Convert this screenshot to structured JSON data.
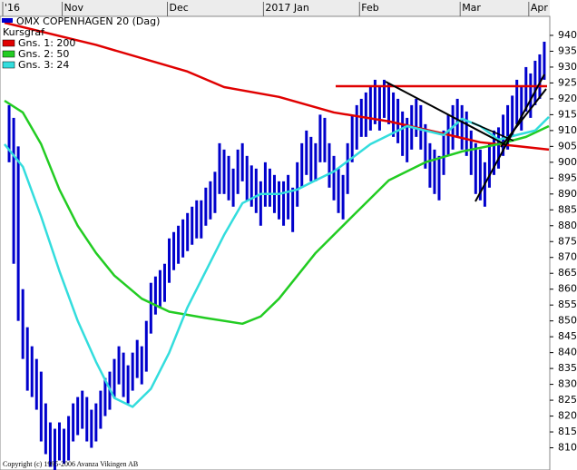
{
  "chart_data": {
    "type": "stock",
    "title": "OMX COPENHAGEN 20 (Dag)",
    "footer": "Copyright (c) 1995-2006 Avanza Vikingen AB",
    "xlim": [
      -1,
      118
    ],
    "xticks": [
      {
        "value": -1,
        "label": "'16"
      },
      {
        "value": 12,
        "label": "Nov"
      },
      {
        "value": 35,
        "label": "Dec"
      },
      {
        "value": 56,
        "label": "2017 Jan"
      },
      {
        "value": 77,
        "label": "Feb"
      },
      {
        "value": 99,
        "label": "Mar"
      },
      {
        "value": 114,
        "label": "Apr"
      }
    ],
    "ylim": [
      803,
      946
    ],
    "yticks": [
      810,
      815,
      820,
      825,
      830,
      835,
      840,
      845,
      850,
      855,
      860,
      865,
      870,
      875,
      880,
      885,
      890,
      895,
      900,
      905,
      910,
      915,
      920,
      925,
      930,
      935,
      940
    ],
    "series": [
      {
        "name": "Kursgraf",
        "color": "#0000cc",
        "high": [
          918,
          914,
          905,
          860,
          848,
          842,
          838,
          834,
          824,
          818,
          816,
          818,
          816,
          820,
          824,
          826,
          828,
          826,
          822,
          824,
          828,
          832,
          834,
          838,
          842,
          840,
          836,
          840,
          844,
          842,
          850,
          862,
          864,
          866,
          868,
          876,
          878,
          880,
          882,
          884,
          886,
          888,
          888,
          892,
          894,
          897,
          906,
          904,
          902,
          898,
          904,
          906,
          902,
          899,
          898,
          894,
          900,
          898,
          896,
          894,
          894,
          896,
          892,
          900,
          906,
          910,
          908,
          906,
          915,
          914,
          906,
          902,
          898,
          896,
          906,
          915,
          918,
          920,
          922,
          924,
          926,
          924,
          926,
          925,
          922,
          920,
          916,
          914,
          918,
          920,
          918,
          912,
          906,
          904,
          902,
          910,
          915,
          918,
          920,
          918,
          916,
          910,
          906,
          904,
          900,
          906,
          910,
          911,
          915,
          918,
          921,
          926,
          924,
          930,
          928,
          932,
          934,
          938
        ],
        "low": [
          900,
          868,
          850,
          838,
          828,
          826,
          822,
          812,
          808,
          804,
          803,
          806,
          805,
          806,
          812,
          814,
          816,
          812,
          810,
          812,
          816,
          820,
          822,
          826,
          830,
          826,
          824,
          828,
          832,
          830,
          834,
          846,
          852,
          854,
          856,
          862,
          866,
          868,
          870,
          872,
          874,
          876,
          876,
          880,
          882,
          884,
          890,
          890,
          888,
          886,
          890,
          894,
          888,
          886,
          884,
          880,
          886,
          886,
          884,
          882,
          880,
          882,
          878,
          886,
          892,
          896,
          894,
          894,
          900,
          900,
          892,
          888,
          884,
          882,
          890,
          900,
          904,
          908,
          908,
          910,
          912,
          910,
          914,
          912,
          908,
          906,
          902,
          900,
          904,
          908,
          904,
          898,
          892,
          890,
          888,
          896,
          902,
          904,
          908,
          904,
          902,
          896,
          890,
          888,
          886,
          892,
          896,
          898,
          902,
          904,
          908,
          912,
          910,
          916,
          914,
          918,
          920,
          926
        ]
      },
      {
        "name": "Gns. 1: 200",
        "color": "#e00000",
        "x": [
          -1,
          19,
          39,
          47,
          59,
          71,
          83,
          95,
          103,
          111,
          118
        ],
        "values": [
          944,
          937,
          928.6,
          923.7,
          920.6,
          915.7,
          912.9,
          909,
          906.3,
          905.1,
          904
        ]
      },
      {
        "name": "Gns. 2: 50",
        "color": "#22cc22",
        "x": [
          -1,
          3,
          7,
          11,
          15,
          19,
          23,
          29,
          35,
          43,
          51,
          55,
          59,
          67,
          75,
          83,
          91,
          99,
          107,
          113,
          118
        ],
        "values": [
          919.4,
          915.7,
          905.7,
          891.4,
          880,
          871.4,
          864.3,
          857,
          852.9,
          850.9,
          849.1,
          851.4,
          857,
          871.4,
          882.9,
          894.3,
          900,
          903.4,
          905.7,
          908,
          911.4
        ]
      },
      {
        "name": "Gns. 3: 24",
        "color": "#33dddd",
        "x": [
          -1,
          3,
          7,
          11,
          15,
          19,
          23,
          27,
          31,
          35,
          39,
          43,
          47,
          51,
          55,
          59,
          63,
          67,
          71,
          75,
          79,
          87,
          91,
          95,
          99,
          103,
          107,
          111,
          115,
          118
        ],
        "values": [
          905.7,
          898.6,
          882.9,
          865.7,
          850,
          837.1,
          825.7,
          822.9,
          828.6,
          840,
          854.3,
          865.7,
          877.1,
          887.1,
          890,
          890,
          891.4,
          894.3,
          897.1,
          901.4,
          905.7,
          911.4,
          910,
          908.6,
          913.7,
          911.4,
          907.1,
          908.6,
          910,
          914.3
        ]
      }
    ]
  }
}
